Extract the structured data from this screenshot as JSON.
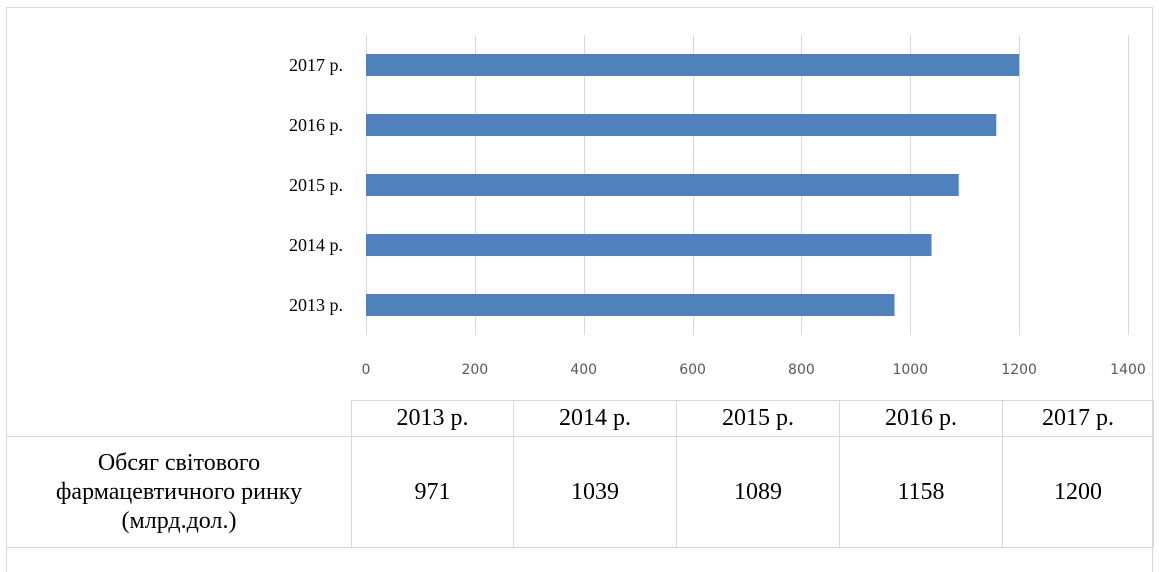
{
  "chart_data": {
    "type": "bar",
    "orientation": "horizontal",
    "categories": [
      "2013 р.",
      "2014 р.",
      "2015 р.",
      "2016 р.",
      "2017 р."
    ],
    "series": [
      {
        "name": "Обсяг світового фармацевтичного ринку (млрд.дол.)",
        "values": [
          971,
          1039,
          1089,
          1158,
          1200
        ],
        "color": "#4f81bd"
      }
    ],
    "xlim": [
      0,
      1400
    ],
    "x_ticks": [
      "0",
      "200",
      "400",
      "600",
      "800",
      "1000",
      "1200",
      "1400"
    ],
    "grid": "vertical",
    "data_table": true,
    "title": "",
    "xlabel": "",
    "ylabel": ""
  },
  "table": {
    "headers": [
      "2013 р.",
      "2014 р.",
      "2015 р.",
      "2016 р.",
      "2017 р."
    ],
    "row_label_lines": [
      "Обсяг світового",
      "фармацевтичного ринку",
      "(млрд.дол.)"
    ],
    "values": [
      "971",
      "1039",
      "1089",
      "1158",
      "1200"
    ]
  }
}
